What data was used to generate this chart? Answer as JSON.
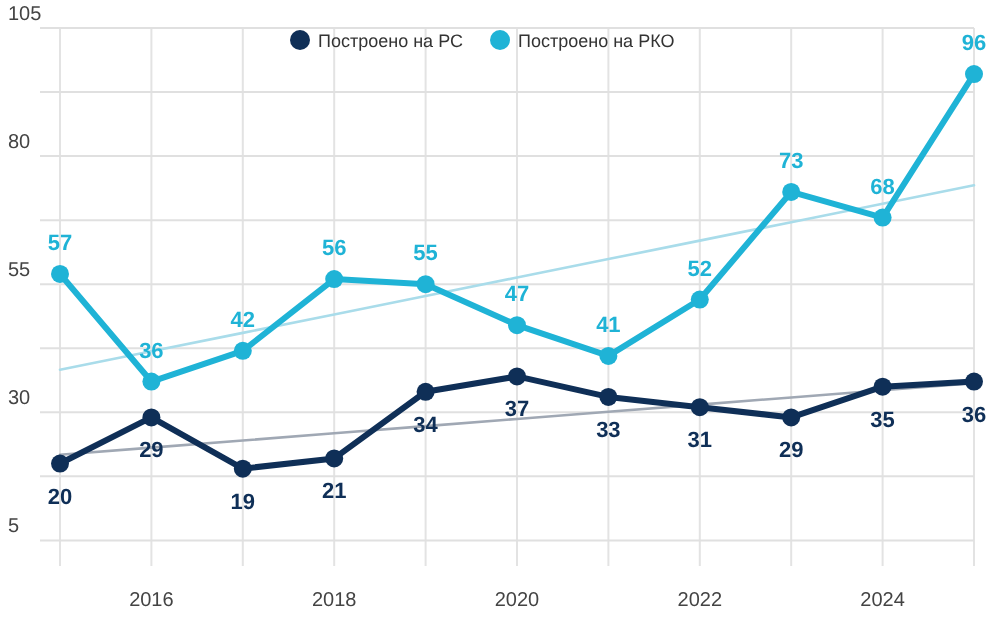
{
  "chart_data": {
    "type": "line",
    "x": [
      2015,
      2016,
      2017,
      2018,
      2019,
      2020,
      2021,
      2022,
      2023,
      2024,
      2025
    ],
    "series": [
      {
        "name": "Построено на РС",
        "color": "#0f2f57",
        "values": [
          20,
          29,
          19,
          21,
          34,
          37,
          33,
          31,
          29,
          35,
          36
        ],
        "marker": "circle",
        "value_labels": [
          "20",
          "29",
          "19",
          "21",
          "34",
          "37",
          "33",
          "31",
          "29",
          "35",
          "36"
        ]
      },
      {
        "name": "Построено на РКО",
        "color": "#1fb3d6",
        "values": [
          57,
          36,
          42,
          56,
          55,
          47,
          41,
          52,
          73,
          68,
          96
        ],
        "marker": "circle",
        "value_labels": [
          "57",
          "36",
          "42",
          "56",
          "55",
          "47",
          "41",
          "52",
          "73",
          "68",
          "96"
        ]
      },
      {
        "type": "line",
        "color": "#a0a8b4",
        "values": [
          21.7,
          23.1,
          24.5,
          25.9,
          27.3,
          28.7,
          30.1,
          31.5,
          32.9,
          34.3,
          35.7
        ],
        "marker": "none"
      },
      {
        "type": "line",
        "color": "#a9dcea",
        "values": [
          38.3,
          41.9,
          45.5,
          49.1,
          52.7,
          56.3,
          59.9,
          63.5,
          67.1,
          70.7,
          74.3
        ],
        "marker": "none"
      }
    ],
    "xlim": [
      2015,
      2025
    ],
    "xticks": [
      {
        "value": 2015,
        "label": null
      },
      2016,
      {
        "value": 2017,
        "label": null
      },
      2018,
      {
        "value": 2019,
        "label": null
      },
      2020,
      {
        "value": 2021,
        "label": null
      },
      2022,
      {
        "value": 2023,
        "label": null
      },
      2024,
      {
        "value": 2025,
        "label": null
      }
    ],
    "ylim": [
      0,
      105
    ],
    "yticks": [
      5,
      {
        "value": 17.5,
        "label": null
      },
      30,
      {
        "value": 42.5,
        "label": null
      },
      55,
      {
        "value": 67.5,
        "label": null
      },
      80,
      {
        "value": 92.5,
        "label": null
      },
      105
    ],
    "grid": true,
    "legend": "top"
  }
}
